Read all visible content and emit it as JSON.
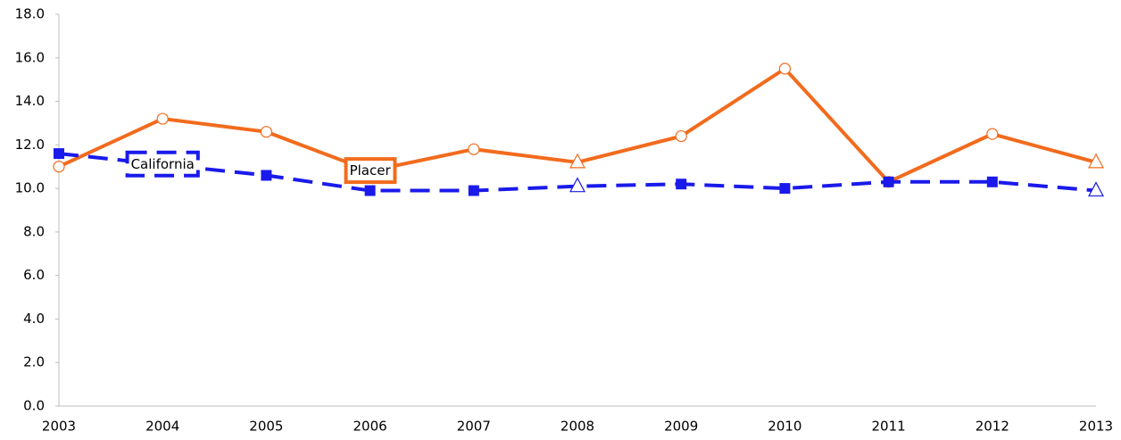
{
  "chart_data": {
    "type": "line",
    "categories": [
      "2003",
      "2004",
      "2005",
      "2006",
      "2007",
      "2008",
      "2009",
      "2010",
      "2011",
      "2012",
      "2013"
    ],
    "series": [
      {
        "name": "Placer",
        "color": "#f26b1d",
        "dash": false,
        "markers": [
          "circle",
          "circle",
          "circle",
          "circle",
          "circle",
          "triangle",
          "circle",
          "circle",
          "circle",
          "circle",
          "triangle"
        ],
        "values": [
          11.0,
          13.2,
          12.6,
          10.8,
          11.8,
          11.2,
          12.4,
          15.5,
          10.3,
          12.5,
          11.2
        ]
      },
      {
        "name": "California",
        "color": "#1a1aeb",
        "dash": true,
        "markers": [
          "square",
          "square",
          "square",
          "square",
          "square",
          "triangle",
          "square",
          "square",
          "square",
          "square",
          "triangle"
        ],
        "values": [
          11.6,
          11.1,
          10.6,
          9.9,
          9.9,
          10.1,
          10.2,
          10.0,
          10.3,
          10.3,
          9.9
        ]
      }
    ],
    "ylim": [
      0,
      18
    ],
    "yticks": [
      {
        "value": 0,
        "label": "0.0"
      },
      {
        "value": 2,
        "label": "2.0"
      },
      {
        "value": 4,
        "label": "4.0"
      },
      {
        "value": 6,
        "label": "6.0"
      },
      {
        "value": 8,
        "label": "8.0"
      },
      {
        "value": 10,
        "label": "10.0"
      },
      {
        "value": 12,
        "label": "12.0"
      },
      {
        "value": 14,
        "label": "14.0"
      },
      {
        "value": 16,
        "label": "16.0"
      },
      {
        "value": 18,
        "label": "18.0"
      }
    ],
    "grid": false
  }
}
